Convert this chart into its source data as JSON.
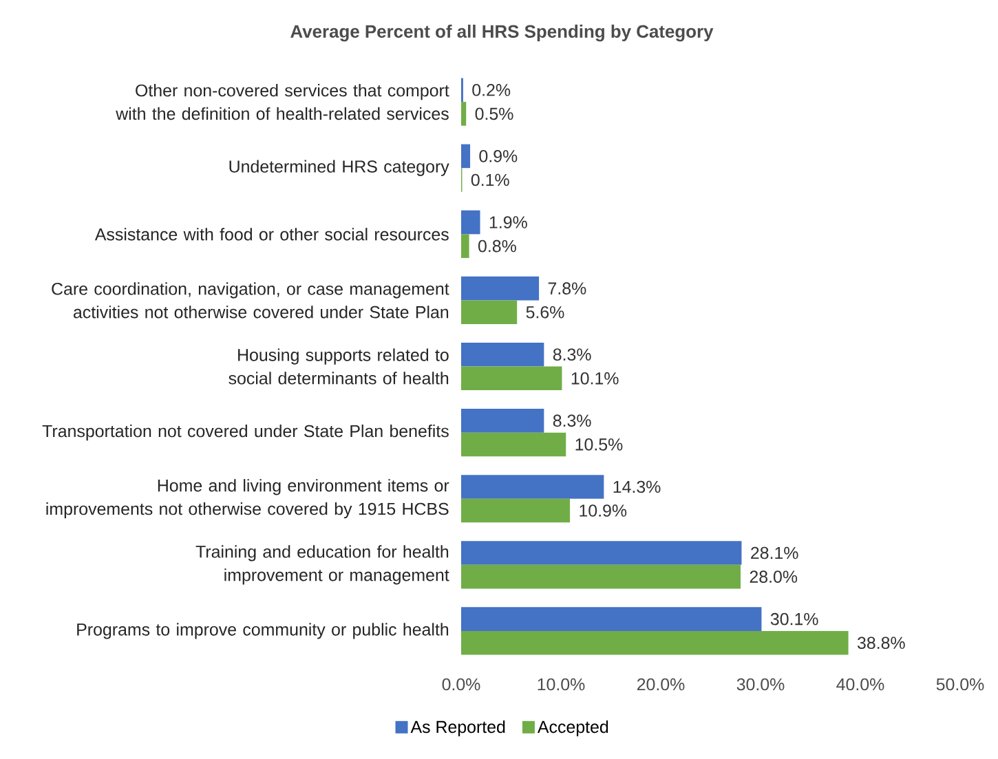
{
  "chart_data": {
    "type": "bar",
    "orientation": "horizontal",
    "title": "Average Percent of all HRS Spending by Category",
    "categories": [
      "Other non-covered services that comport with the definition of health-related services",
      "Undetermined HRS category",
      "Assistance with food or other social resources",
      "Care coordination, navigation, or case management activities not otherwise covered under State Plan",
      "Housing supports related to social determinants of health",
      "Transportation not covered under State Plan benefits",
      "Home and living environment items or improvements not otherwise covered by 1915 HCBS",
      "Training and education for health improvement or management",
      "Programs to improve community or public health"
    ],
    "series": [
      {
        "name": "As Reported",
        "color": "#4472c4",
        "values": [
          0.2,
          0.9,
          1.9,
          7.8,
          8.3,
          8.3,
          14.3,
          28.1,
          30.1
        ],
        "value_labels": [
          "0.2%",
          "0.9%",
          "1.9%",
          "7.8%",
          "8.3%",
          "8.3%",
          "14.3%",
          "28.1%",
          "30.1%"
        ]
      },
      {
        "name": "Accepted",
        "color": "#70ad47",
        "values": [
          0.5,
          0.1,
          0.8,
          5.6,
          10.1,
          10.5,
          10.9,
          28.0,
          38.8
        ],
        "value_labels": [
          "0.5%",
          "0.1%",
          "0.8%",
          "5.6%",
          "10.1%",
          "10.5%",
          "10.9%",
          "28.0%",
          "38.8%"
        ]
      }
    ],
    "xlim": [
      0,
      50
    ],
    "xticks": [
      {
        "value": 0,
        "label": "0.0%"
      },
      {
        "value": 10,
        "label": "10.0%"
      },
      {
        "value": 20,
        "label": "20.0%"
      },
      {
        "value": 30,
        "label": "30.0%"
      },
      {
        "value": 40,
        "label": "40.0%"
      },
      {
        "value": 50,
        "label": "50.0%"
      }
    ],
    "legend": "bottom"
  }
}
